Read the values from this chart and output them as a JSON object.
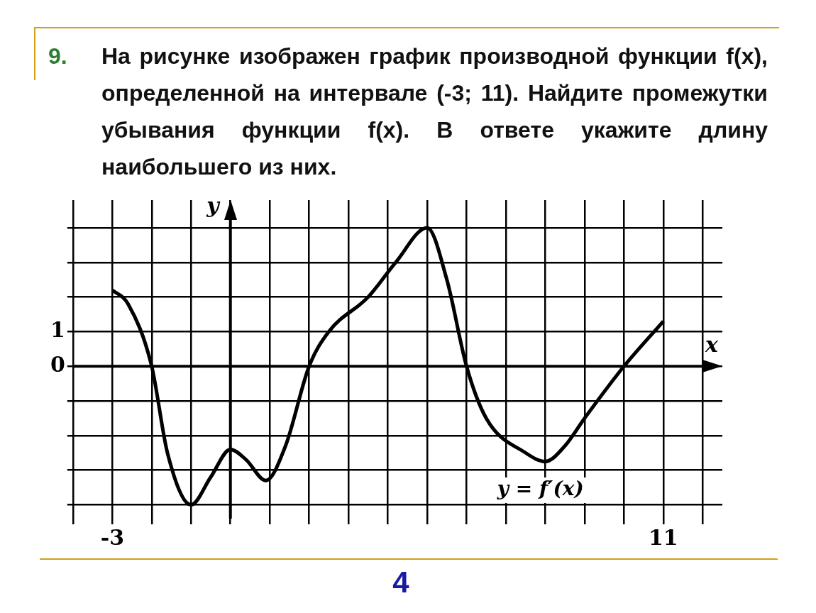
{
  "chart_data": {
    "type": "line",
    "title": "На рисунке изображен график производной функции f(x), определенной на интервале (-3; 11). Найдите промежутки убывания функции f(x). В ответе укажите длину наибольшего из них.",
    "xlabel": "x",
    "ylabel": "y",
    "x": [
      -3,
      -2.6,
      -2,
      -1.6,
      -1,
      -0.5,
      0,
      0.4,
      0.9,
      1.4,
      2,
      2.5,
      3.5,
      4.2,
      5,
      5.5,
      6,
      6.5,
      7.5,
      8,
      8.5,
      9,
      10,
      11
    ],
    "series": [
      {
        "color": "#000000",
        "values": [
          2.2,
          1.8,
          0,
          -2.5,
          -4,
          -3.2,
          -2.4,
          -2.7,
          -3.3,
          -2.3,
          0,
          1,
          2,
          3,
          4,
          2.5,
          0,
          -1.5,
          -2.5,
          -2.75,
          -2.3,
          -1.5,
          0,
          1.3
        ]
      }
    ],
    "xlim": [
      -4,
      12.5
    ],
    "ylim": [
      -4.4,
      4.8
    ],
    "xticks": [
      {
        "value": -4,
        "label": null
      },
      -3,
      {
        "value": -2,
        "label": null
      },
      {
        "value": -1,
        "label": null
      },
      {
        "value": 0,
        "label": null
      },
      {
        "value": 1,
        "label": null
      },
      {
        "value": 2,
        "label": null
      },
      {
        "value": 3,
        "label": null
      },
      {
        "value": 4,
        "label": null
      },
      {
        "value": 5,
        "label": null
      },
      {
        "value": 6,
        "label": null
      },
      {
        "value": 7,
        "label": null
      },
      {
        "value": 8,
        "label": null
      },
      {
        "value": 9,
        "label": null
      },
      {
        "value": 10,
        "label": null
      },
      11,
      {
        "value": 12,
        "label": null
      }
    ],
    "yticks": [
      {
        "value": -4,
        "label": null
      },
      {
        "value": -3,
        "label": null
      },
      {
        "value": -2,
        "label": null
      },
      {
        "value": -1,
        "label": null
      },
      0,
      1,
      {
        "value": 2,
        "label": null
      },
      {
        "value": 3,
        "label": null
      },
      {
        "value": 4,
        "label": null
      }
    ],
    "grid": true,
    "legend": false,
    "marker": "none",
    "line_style": "solid",
    "annotations": [
      "9.",
      "y = f′(x)",
      "4"
    ]
  }
}
